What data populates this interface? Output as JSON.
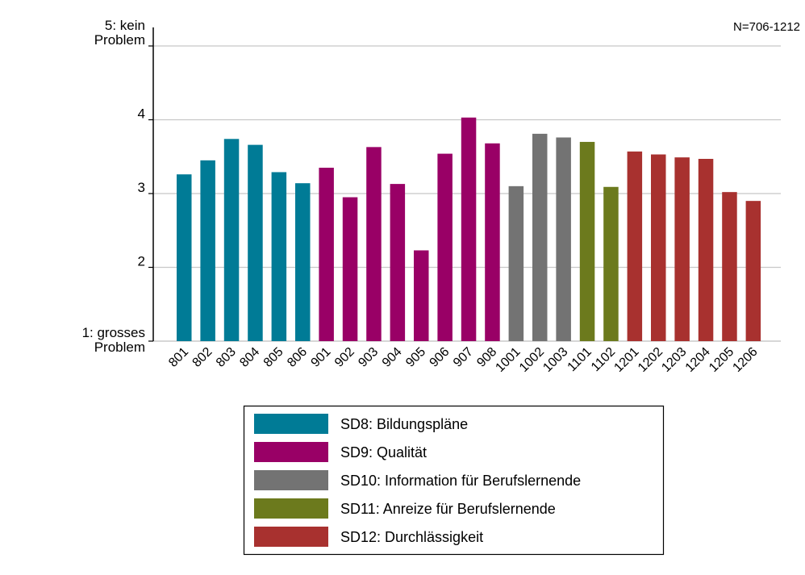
{
  "chart_data": {
    "type": "bar",
    "note": "N=706-1212",
    "y_tick_labels": [
      {
        "value": 5,
        "lines": [
          "5: kein",
          "Problem"
        ]
      },
      {
        "value": 4,
        "lines": [
          "4"
        ]
      },
      {
        "value": 3,
        "lines": [
          "3"
        ]
      },
      {
        "value": 2,
        "lines": [
          "2"
        ]
      },
      {
        "value": 1,
        "lines": [
          "1: grosses",
          "Problem"
        ]
      }
    ],
    "ylim": [
      1,
      5
    ],
    "grid": true,
    "categories": [
      "801",
      "802",
      "803",
      "804",
      "805",
      "806",
      "901",
      "902",
      "903",
      "904",
      "905",
      "906",
      "907",
      "908",
      "1001",
      "1002",
      "1003",
      "1101",
      "1102",
      "1201",
      "1202",
      "1203",
      "1204",
      "1205",
      "1206"
    ],
    "values": [
      3.26,
      3.45,
      3.74,
      3.66,
      3.29,
      3.14,
      3.35,
      2.95,
      3.63,
      3.13,
      2.23,
      3.54,
      4.03,
      3.68,
      3.1,
      3.81,
      3.76,
      3.7,
      3.09,
      3.57,
      3.53,
      3.49,
      3.47,
      3.02,
      2.9
    ],
    "groups": [
      0,
      0,
      0,
      0,
      0,
      0,
      1,
      1,
      1,
      1,
      1,
      1,
      1,
      1,
      2,
      2,
      2,
      3,
      3,
      4,
      4,
      4,
      4,
      4,
      4
    ],
    "series": [
      {
        "name": "SD8: Bildungspläne",
        "color": "#007b96"
      },
      {
        "name": "SD9: Qualität",
        "color": "#990066"
      },
      {
        "name": "SD10: Information für Berufslernende",
        "color": "#737373"
      },
      {
        "name": "SD11: Anreize für Berufslernende",
        "color": "#6c7a1d"
      },
      {
        "name": "SD12: Durchlässigkeit",
        "color": "#a8312f"
      }
    ],
    "legend_position": "bottom",
    "title": "",
    "xlabel": "",
    "ylabel": ""
  }
}
